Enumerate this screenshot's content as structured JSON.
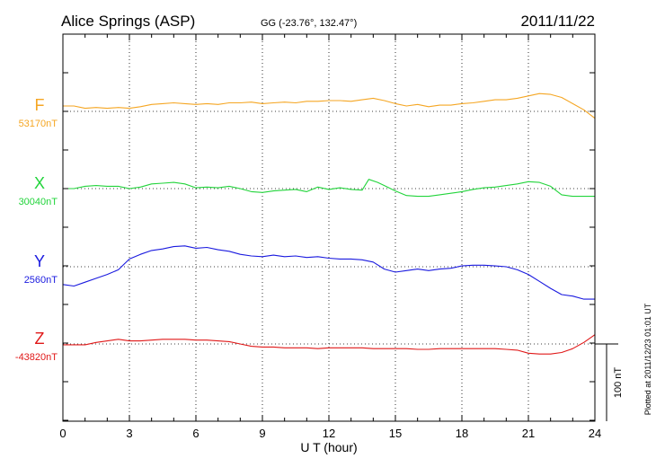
{
  "chart_data": {
    "type": "line",
    "title": "Alice Springs (ASP)",
    "subtitle": "GG (-23.76°, 132.47°)",
    "date": "2011/11/22",
    "xlabel": "U T (hour)",
    "xlim": [
      0,
      24
    ],
    "x_ticks": [
      "0",
      "3",
      "6",
      "9",
      "12",
      "15",
      "18",
      "21",
      "24"
    ],
    "scale_label": "100 nT",
    "plotted_note": "Plotted at 2011/12/23 01:01  UT",
    "grid": true,
    "series": [
      {
        "name": "F",
        "baseline_label": "53170nT",
        "color": "#f5a623",
        "x": [
          0,
          0.5,
          1,
          1.5,
          2,
          2.5,
          3,
          3.5,
          4,
          4.5,
          5,
          5.5,
          6,
          6.5,
          7,
          7.5,
          8,
          8.5,
          9,
          9.5,
          10,
          10.5,
          11,
          11.5,
          12,
          12.5,
          13,
          13.5,
          14,
          14.5,
          15,
          15.5,
          16,
          16.5,
          17,
          17.5,
          18,
          18.5,
          19,
          19.5,
          20,
          20.5,
          21,
          21.5,
          22,
          22.5,
          23,
          23.5,
          24
        ],
        "y": [
          7,
          7,
          4,
          5,
          4,
          5,
          4,
          6,
          9,
          10,
          11,
          10,
          9,
          10,
          9,
          11,
          11,
          12,
          10,
          11,
          12,
          11,
          13,
          13,
          14,
          14,
          13,
          15,
          17,
          14,
          10,
          7,
          9,
          6,
          8,
          8,
          10,
          11,
          13,
          15,
          15,
          17,
          20,
          23,
          22,
          18,
          10,
          2,
          -9
        ]
      },
      {
        "name": "X",
        "baseline_label": "30040nT",
        "color": "#22d43b",
        "x": [
          0,
          0.5,
          1,
          1.5,
          2,
          2.5,
          3,
          3.5,
          4,
          4.5,
          5,
          5.5,
          6,
          6.5,
          7,
          7.5,
          8,
          8.5,
          9,
          9.5,
          10,
          10.5,
          11,
          11.5,
          12,
          12.5,
          13,
          13.5,
          13.8,
          14.2,
          14.5,
          15,
          15.5,
          16,
          16.5,
          17,
          17.5,
          18,
          18.5,
          19,
          19.5,
          20,
          20.5,
          21,
          21.5,
          22,
          22.5,
          23,
          23.5,
          24
        ],
        "y": [
          0,
          0,
          3,
          4,
          3,
          3,
          0,
          2,
          6,
          7,
          8,
          6,
          1,
          2,
          1,
          3,
          0,
          -4,
          -5,
          -3,
          -2,
          -1,
          -4,
          2,
          -1,
          1,
          -1,
          -2,
          12,
          8,
          4,
          -3,
          -9,
          -10,
          -10,
          -8,
          -6,
          -4,
          -1,
          1,
          2,
          4,
          6,
          9,
          8,
          3,
          -8,
          -10,
          -10,
          -10
        ]
      },
      {
        "name": "Y",
        "baseline_label": "2560nT",
        "color": "#1a1adf",
        "x": [
          0,
          0.5,
          1,
          1.5,
          2,
          2.5,
          3,
          3.5,
          4,
          4.5,
          5,
          5.5,
          6,
          6.5,
          7,
          7.5,
          8,
          8.5,
          9,
          9.5,
          10,
          10.5,
          11,
          11.5,
          12,
          12.5,
          13,
          13.5,
          14,
          14.5,
          15,
          15.5,
          16,
          16.5,
          17,
          17.5,
          18,
          18.5,
          19,
          19.5,
          20,
          20.5,
          21,
          21.5,
          22,
          22.5,
          23,
          23.5,
          24
        ],
        "y": [
          -23,
          -25,
          -20,
          -15,
          -10,
          -4,
          10,
          16,
          21,
          23,
          26,
          27,
          24,
          25,
          22,
          20,
          16,
          14,
          13,
          15,
          13,
          14,
          12,
          13,
          11,
          10,
          10,
          9,
          6,
          -3,
          -7,
          -5,
          -3,
          -5,
          -3,
          -2,
          1,
          2,
          2,
          1,
          0,
          -4,
          -10,
          -19,
          -28,
          -36,
          -38,
          -42,
          -42
        ]
      },
      {
        "name": "Z",
        "baseline_label": "-43820nT",
        "color": "#e01818",
        "x": [
          0,
          0.5,
          1,
          1.5,
          2,
          2.5,
          3,
          3.5,
          4,
          4.5,
          5,
          5.5,
          6,
          6.5,
          7,
          7.5,
          8,
          8.5,
          9,
          9.5,
          10,
          10.5,
          11,
          11.5,
          12,
          12.5,
          13,
          13.5,
          14,
          14.5,
          15,
          15.5,
          16,
          16.5,
          17,
          17.5,
          18,
          18.5,
          19,
          19.5,
          20,
          20.5,
          21,
          21.5,
          22,
          22.5,
          23,
          23.5,
          24
        ],
        "y": [
          -1,
          -1,
          -1,
          2,
          4,
          6,
          4,
          4,
          5,
          6,
          6,
          6,
          5,
          5,
          4,
          3,
          0,
          -3,
          -4,
          -4,
          -5,
          -5,
          -5,
          -6,
          -5,
          -5,
          -5,
          -5,
          -6,
          -6,
          -6,
          -6,
          -7,
          -7,
          -6,
          -6,
          -6,
          -6,
          -6,
          -6,
          -7,
          -8,
          -12,
          -13,
          -13,
          -11,
          -6,
          2,
          12
        ]
      }
    ]
  }
}
